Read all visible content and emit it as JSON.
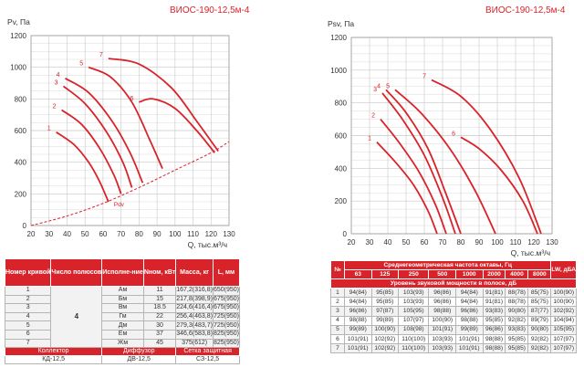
{
  "chart_data": [
    {
      "type": "line",
      "title": "ВИОС-190-12,5м-4",
      "ylabel": "Pv, Па",
      "xlabel": "Q, тыс.м³/ч",
      "xlim": [
        20,
        130
      ],
      "ylim": [
        0,
        1200
      ],
      "xticks": [
        "20",
        "30",
        "40",
        "50",
        "60",
        "70",
        "80",
        "90",
        "100",
        "110",
        "120",
        "130"
      ],
      "yticks": [
        "0",
        "200",
        "400",
        "600",
        "800",
        "1000",
        "1200"
      ],
      "curve_labels": [
        "1",
        "2",
        "3",
        "4",
        "5",
        "6",
        "7"
      ],
      "dyn_label": "Pdv",
      "series": [
        {
          "name": "1",
          "x": [
            34,
            44,
            52,
            58,
            63
          ],
          "y": [
            590,
            510,
            400,
            280,
            150
          ]
        },
        {
          "name": "2",
          "x": [
            37,
            48,
            58,
            66,
            70
          ],
          "y": [
            730,
            640,
            490,
            320,
            200
          ]
        },
        {
          "name": "3",
          "x": [
            38,
            50,
            62,
            71,
            76
          ],
          "y": [
            880,
            770,
            590,
            400,
            240
          ]
        },
        {
          "name": "4",
          "x": [
            39,
            52,
            65,
            75,
            82
          ],
          "y": [
            930,
            840,
            660,
            460,
            270
          ]
        },
        {
          "name": "5",
          "x": [
            52,
            64,
            76,
            86,
            93
          ],
          "y": [
            1000,
            940,
            780,
            540,
            360
          ]
        },
        {
          "name": "6",
          "x": [
            80,
            88,
            100,
            112,
            122
          ],
          "y": [
            780,
            800,
            740,
            600,
            460
          ]
        },
        {
          "name": "7",
          "x": [
            63,
            80,
            98,
            112,
            124
          ],
          "y": [
            1055,
            1020,
            870,
            660,
            470
          ]
        },
        {
          "name": "Pdv",
          "x": [
            20,
            40,
            60,
            80,
            100,
            120,
            130
          ],
          "y": [
            0,
            60,
            140,
            240,
            350,
            460,
            530
          ]
        }
      ]
    },
    {
      "type": "line",
      "title": "ВИОС-190-12,5м-4",
      "ylabel": "Psv, Па",
      "xlabel": "Q, тыс.м³/ч",
      "xlim": [
        20,
        130
      ],
      "ylim": [
        0,
        1200
      ],
      "xticks": [
        "20",
        "30",
        "40",
        "50",
        "60",
        "70",
        "80",
        "90",
        "100",
        "110",
        "120",
        "130"
      ],
      "yticks": [
        "0",
        "200",
        "400",
        "600",
        "800",
        "1000",
        "1200"
      ],
      "curve_labels": [
        "1",
        "2",
        "3",
        "4",
        "5",
        "6",
        "7"
      ],
      "series": [
        {
          "name": "1",
          "x": [
            34,
            44,
            54,
            62,
            67
          ],
          "y": [
            560,
            440,
            300,
            140,
            0
          ]
        },
        {
          "name": "2",
          "x": [
            36,
            46,
            57,
            66,
            72
          ],
          "y": [
            700,
            560,
            380,
            180,
            0
          ]
        },
        {
          "name": "3",
          "x": [
            37,
            48,
            60,
            70,
            77
          ],
          "y": [
            860,
            700,
            480,
            220,
            0
          ]
        },
        {
          "name": "4",
          "x": [
            39,
            50,
            62,
            72,
            80
          ],
          "y": [
            880,
            740,
            520,
            240,
            0
          ]
        },
        {
          "name": "5",
          "x": [
            44,
            58,
            74,
            88,
            99
          ],
          "y": [
            880,
            740,
            520,
            260,
            0
          ]
        },
        {
          "name": "6",
          "x": [
            80,
            90,
            102,
            114,
            122
          ],
          "y": [
            590,
            520,
            390,
            200,
            0
          ]
        },
        {
          "name": "7",
          "x": [
            64,
            80,
            96,
            112,
            124
          ],
          "y": [
            940,
            840,
            640,
            340,
            0
          ]
        }
      ]
    }
  ],
  "specs_table": {
    "headers": [
      "Номер кривой",
      "Число полюсов",
      "Исполне-ние",
      "Nном, кВт",
      "Масса, кг",
      "L, мм"
    ],
    "poles": "4",
    "rows": [
      [
        "1",
        "Ам",
        "11",
        "167,2(316,8)",
        "650(950)"
      ],
      [
        "2",
        "Бм",
        "15",
        "217,8(398,9)",
        "675(950)"
      ],
      [
        "3",
        "Вм",
        "18.5",
        "224,6(416,4)",
        "675(950)"
      ],
      [
        "4",
        "Гм",
        "22",
        "256,4(463,8)",
        "725(950)"
      ],
      [
        "5",
        "Дм",
        "30",
        "279,3(483,7)",
        "725(950)"
      ],
      [
        "6",
        "Ем",
        "37",
        "346,6(583,8)",
        "825(950)"
      ],
      [
        "7",
        "Жм",
        "45",
        "375(612)",
        "825(950)"
      ]
    ],
    "accessories_headers": [
      "Коллектор",
      "Диффузор",
      "Сетка защитная"
    ],
    "accessories_values": [
      "КД-12,5",
      "ДВ-12,5",
      "СЗ-12,5"
    ]
  },
  "sound_table": {
    "num_header": "№",
    "freq_header": "Среднегеометрическая частота октавы, Гц",
    "freqs": [
      "63",
      "125",
      "250",
      "500",
      "1000",
      "2000",
      "4000",
      "8000"
    ],
    "lw_header": "LW, дБА",
    "level_header": "Уровень звуковой мощности в полосе, дБ",
    "rows": [
      [
        "1",
        "94(84)",
        "95(85)",
        "103(93)",
        "96(86)",
        "94(84)",
        "91(81)",
        "88(78)",
        "85(75)",
        "100(90)"
      ],
      [
        "2",
        "94(84)",
        "95(85)",
        "103(93)",
        "96(86)",
        "94(84)",
        "91(81)",
        "88(78)",
        "85(75)",
        "100(90)"
      ],
      [
        "3",
        "96(86)",
        "97(87)",
        "105(95)",
        "98(88)",
        "96(86)",
        "93(83)",
        "90(80)",
        "87(77)",
        "102(92)"
      ],
      [
        "4",
        "98(88)",
        "99(89)",
        "107(97)",
        "100(90)",
        "98(88)",
        "95(85)",
        "92(82)",
        "89(79)",
        "104(94)"
      ],
      [
        "5",
        "99(89)",
        "100(90)",
        "108(98)",
        "101(91)",
        "99(89)",
        "96(86)",
        "93(83)",
        "90(80)",
        "105(95)"
      ],
      [
        "6",
        "101(91)",
        "102(92)",
        "110(100)",
        "103(93)",
        "101(91)",
        "98(88)",
        "95(85)",
        "92(82)",
        "107(97)"
      ],
      [
        "7",
        "101(91)",
        "102(92)",
        "110(100)",
        "103(93)",
        "101(91)",
        "98(88)",
        "95(85)",
        "92(82)",
        "107(97)"
      ]
    ]
  },
  "colors": {
    "curve": "#d8232a",
    "header_bg": "#d8232a",
    "grid": "#c8c8c8"
  }
}
